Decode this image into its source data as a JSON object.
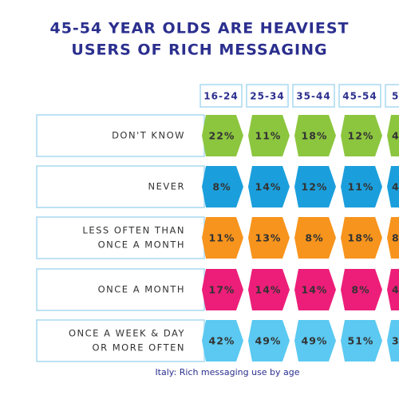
{
  "title": [
    "45-54 YEAR OLDS ARE HEAVIEST",
    "USERS OF RICH MESSAGING"
  ],
  "columns": [
    "16-24",
    "25-34",
    "35-44",
    "45-54",
    "5"
  ],
  "rows": [
    {
      "label": [
        "DON'T KNOW"
      ],
      "color": "#8cc63f",
      "cells": [
        "22%",
        "11%",
        "18%",
        "12%",
        "4"
      ]
    },
    {
      "label": [
        "NEVER"
      ],
      "color": "#1b9fdc",
      "cells": [
        "8%",
        "14%",
        "12%",
        "11%",
        "4"
      ]
    },
    {
      "label": [
        "LESS OFTEN THAN",
        "ONCE A MONTH"
      ],
      "color": "#f7941d",
      "cells": [
        "11%",
        "13%",
        "8%",
        "18%",
        "8"
      ]
    },
    {
      "label": [
        "ONCE A MONTH"
      ],
      "color": "#ec1e79",
      "cells": [
        "17%",
        "14%",
        "14%",
        "8%",
        "4"
      ]
    },
    {
      "label": [
        "ONCE A WEEK & DAY",
        "OR MORE OFTEN"
      ],
      "color": "#5bc9f1",
      "cells": [
        "42%",
        "49%",
        "49%",
        "51%",
        "3"
      ]
    }
  ],
  "caption": "Italy: Rich messaging use by age"
}
